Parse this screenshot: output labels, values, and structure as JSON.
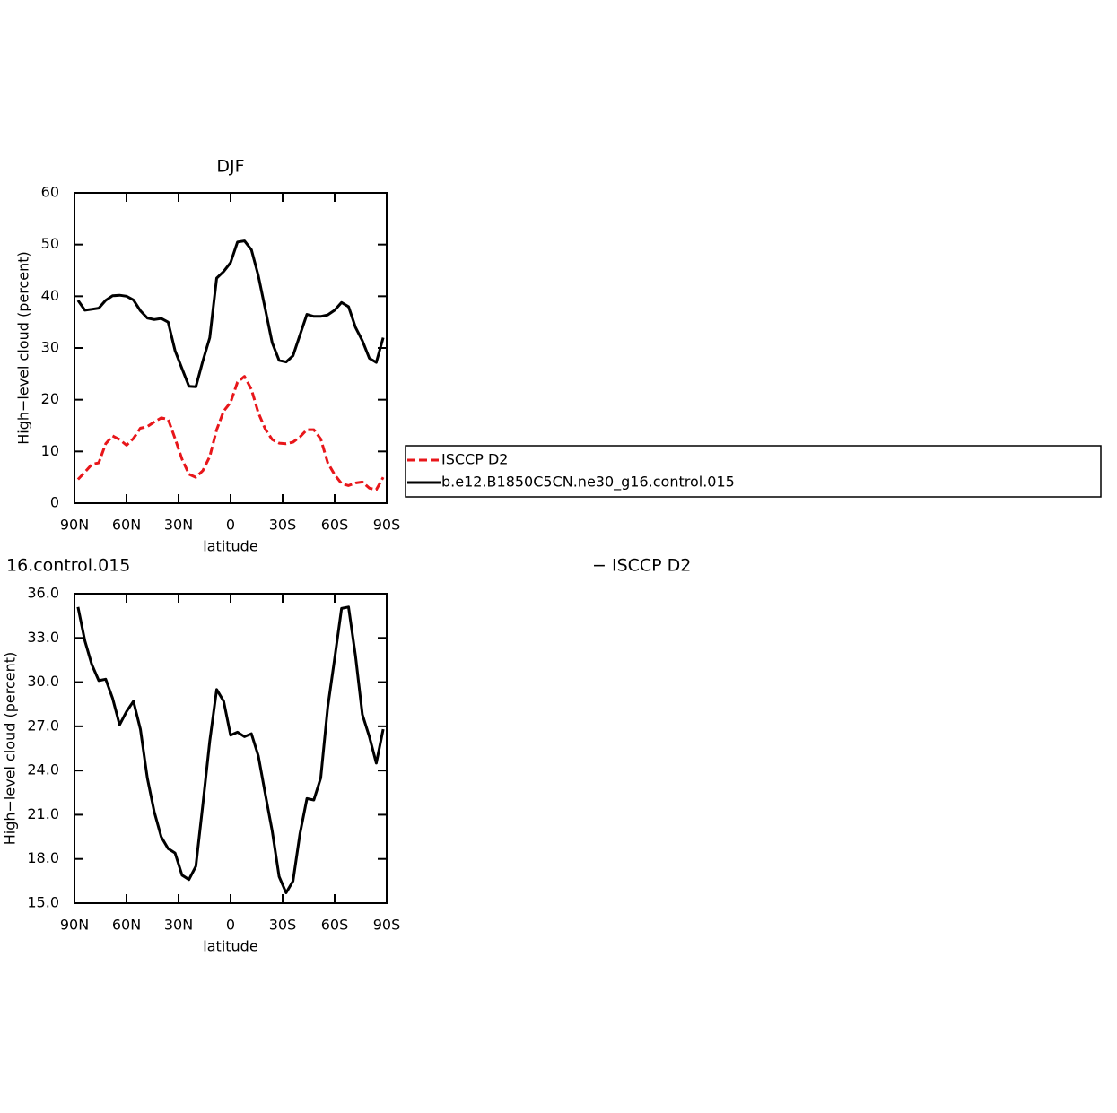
{
  "chart_data": [
    {
      "type": "line",
      "title": "DJF",
      "x_label": "latitude",
      "y_label": "High−level cloud (percent)",
      "x": [
        88,
        84,
        80,
        76,
        72,
        68,
        64,
        60,
        56,
        52,
        48,
        44,
        40,
        36,
        32,
        28,
        24,
        20,
        16,
        12,
        8,
        4,
        0,
        -4,
        -8,
        -12,
        -16,
        -20,
        -24,
        -28,
        -32,
        -36,
        -40,
        -44,
        -48,
        -52,
        -56,
        -60,
        -64,
        -68,
        -72,
        -76,
        -80,
        -84,
        -88
      ],
      "xlim": [
        90,
        -90
      ],
      "xticks": [
        {
          "value": 90,
          "label": "90N"
        },
        {
          "value": 60,
          "label": "60N"
        },
        {
          "value": 30,
          "label": "30N"
        },
        0,
        {
          "value": -30,
          "label": "30S"
        },
        {
          "value": -60,
          "label": "60S"
        },
        {
          "value": -90,
          "label": "90S"
        }
      ],
      "ylim": [
        0,
        60
      ],
      "yticks": [
        0,
        10,
        20,
        30,
        40,
        50,
        60
      ],
      "legend": "right",
      "series": [
        {
          "name": "ISCCP D2",
          "color": "#e8161a",
          "dashed": true,
          "values": [
            4.6,
            6,
            7.5,
            7.8,
            11.5,
            13,
            12.3,
            11.2,
            12.5,
            14.5,
            14.8,
            15.7,
            16.5,
            16.2,
            12.5,
            8.5,
            5.6,
            5,
            6.3,
            9,
            14.2,
            17.8,
            19.5,
            23.4,
            24.5,
            22,
            17.5,
            14.3,
            12.3,
            11.6,
            11.5,
            11.8,
            12.8,
            14.2,
            14.2,
            12.4,
            7.8,
            5.5,
            3.8,
            3.4,
            3.9,
            4.1,
            2.9,
            2.6,
            5
          ]
        },
        {
          "name": "b.e12.B1850C5CN.ne30_g16.control.015",
          "color": "#000000",
          "dashed": false,
          "values": [
            39.2,
            37.3,
            37.5,
            37.7,
            39.2,
            40.1,
            40.2,
            40,
            39.3,
            37.2,
            35.8,
            35.5,
            35.7,
            35,
            29.5,
            26,
            22.6,
            22.5,
            27.5,
            32,
            43.5,
            44.8,
            46.5,
            50.5,
            50.7,
            49,
            44,
            37.5,
            31,
            27.6,
            27.3,
            28.5,
            32.5,
            36.5,
            36.1,
            36.1,
            36.4,
            37.3,
            38.8,
            38,
            34,
            31.4,
            28,
            27.2,
            32
          ]
        }
      ]
    },
    {
      "type": "line",
      "title_parts": [
        "16.control.015",
        "− ISCCP D2"
      ],
      "x_label": "latitude",
      "y_label": "High−level cloud (percent)",
      "x": [
        88,
        84,
        80,
        76,
        72,
        68,
        64,
        60,
        56,
        52,
        48,
        44,
        40,
        36,
        32,
        28,
        24,
        20,
        16,
        12,
        8,
        4,
        0,
        -4,
        -8,
        -12,
        -16,
        -20,
        -24,
        -28,
        -32,
        -36,
        -40,
        -44,
        -48,
        -52,
        -56,
        -60,
        -64,
        -68,
        -72,
        -76,
        -80,
        -84,
        -88
      ],
      "xlim": [
        90,
        -90
      ],
      "xticks": [
        {
          "value": 90,
          "label": "90N"
        },
        {
          "value": 60,
          "label": "60N"
        },
        {
          "value": 30,
          "label": "30N"
        },
        0,
        {
          "value": -30,
          "label": "30S"
        },
        {
          "value": -60,
          "label": "60S"
        },
        {
          "value": -90,
          "label": "90S"
        }
      ],
      "ylim": [
        15,
        36
      ],
      "yticks": [
        {
          "value": 15,
          "label": "15.0"
        },
        {
          "value": 18,
          "label": "18.0"
        },
        {
          "value": 21,
          "label": "21.0"
        },
        {
          "value": 24,
          "label": "24.0"
        },
        {
          "value": 27,
          "label": "27.0"
        },
        {
          "value": 30,
          "label": "30.0"
        },
        {
          "value": 33,
          "label": "33.0"
        },
        {
          "value": 36,
          "label": "36.0"
        }
      ],
      "series": [
        {
          "color": "#000000",
          "dashed": false,
          "values": [
            35.1,
            32.8,
            31.2,
            30.1,
            30.2,
            28.9,
            27.1,
            28,
            28.7,
            26.8,
            23.5,
            21.2,
            19.5,
            18.7,
            18.4,
            16.9,
            16.6,
            17.5,
            21.7,
            26,
            29.5,
            28.7,
            26.4,
            26.6,
            26.3,
            26.5,
            25,
            22.4,
            19.9,
            16.8,
            15.7,
            16.5,
            19.7,
            22.1,
            22,
            23.5,
            28.3,
            31.6,
            35,
            35.1,
            31.8,
            27.8,
            26.3,
            24.5,
            26.8
          ]
        }
      ]
    }
  ]
}
